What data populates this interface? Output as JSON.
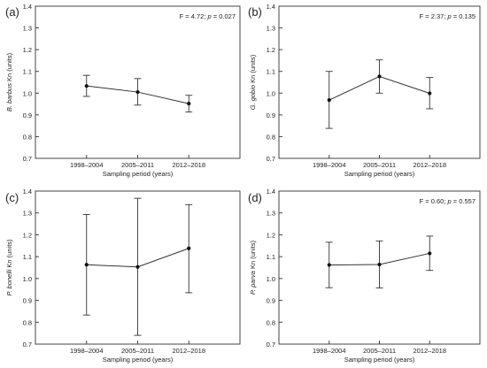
{
  "chart_data": [
    {
      "type": "line",
      "panel_label": "(a)",
      "ylabel_italic": "B. barbus",
      "ylabel_rest": " Kn (units)",
      "xlabel": "Sampling period (years)",
      "categories": [
        "1998–2004",
        "2005–2011",
        "2012–2018"
      ],
      "ylim": [
        0.7,
        1.4
      ],
      "yticks": [
        "0.7",
        "0.8",
        "0.9",
        "1.0",
        "1.1",
        "1.2",
        "1.3",
        "1.4"
      ],
      "values": [
        1.033,
        1.005,
        0.952
      ],
      "err_low": [
        0.985,
        0.945,
        0.913
      ],
      "err_high": [
        1.082,
        1.067,
        0.99
      ],
      "stat_pre": "F = 4.72; ",
      "stat_p": "p",
      "stat_post": " = 0.027"
    },
    {
      "type": "line",
      "panel_label": "(b)",
      "ylabel_italic": "G. gobio",
      "ylabel_rest": " Kn (units)",
      "xlabel": "Sampling period (years)",
      "categories": [
        "1998–2004",
        "2005–2011",
        "2012–2018"
      ],
      "ylim": [
        0.7,
        1.4
      ],
      "yticks": [
        "0.7",
        "0.8",
        "0.9",
        "1.0",
        "1.1",
        "1.2",
        "1.3",
        "1.4"
      ],
      "values": [
        0.968,
        1.077,
        0.999
      ],
      "err_low": [
        0.838,
        1.0,
        0.928
      ],
      "err_high": [
        1.1,
        1.153,
        1.072
      ],
      "stat_pre": "F = 2.37; ",
      "stat_p": "p",
      "stat_post": " = 0.135"
    },
    {
      "type": "line",
      "panel_label": "(c)",
      "ylabel_italic": "P. bonelli",
      "ylabel_rest": " Kn (units)",
      "xlabel": "Sampling period (years)",
      "categories": [
        "1998–2004",
        "2005–2011",
        "2012–2018"
      ],
      "ylim": [
        0.7,
        1.4
      ],
      "yticks": [
        "0.7",
        "0.8",
        "0.9",
        "1.0",
        "1.1",
        "1.2",
        "1.3",
        "1.4"
      ],
      "values": [
        1.063,
        1.053,
        1.138
      ],
      "err_low": [
        0.833,
        0.74,
        0.935
      ],
      "err_high": [
        1.293,
        1.367,
        1.338
      ],
      "stat_pre": "",
      "stat_p": "",
      "stat_post": ""
    },
    {
      "type": "line",
      "panel_label": "(d)",
      "ylabel_italic": "P. parva",
      "ylabel_rest": " Kn (units)",
      "xlabel": "Sampling period (years)",
      "categories": [
        "1998–2004",
        "2005–2011",
        "2012–2018"
      ],
      "ylim": [
        0.7,
        1.4
      ],
      "yticks": [
        "0.7",
        "0.8",
        "0.9",
        "1.0",
        "1.1",
        "1.2",
        "1.3",
        "1.4"
      ],
      "values": [
        1.062,
        1.064,
        1.115
      ],
      "err_low": [
        0.958,
        0.957,
        1.037
      ],
      "err_high": [
        1.166,
        1.172,
        1.194
      ],
      "stat_pre": "F = 0.60; ",
      "stat_p": "p",
      "stat_post": " = 0.557"
    }
  ]
}
